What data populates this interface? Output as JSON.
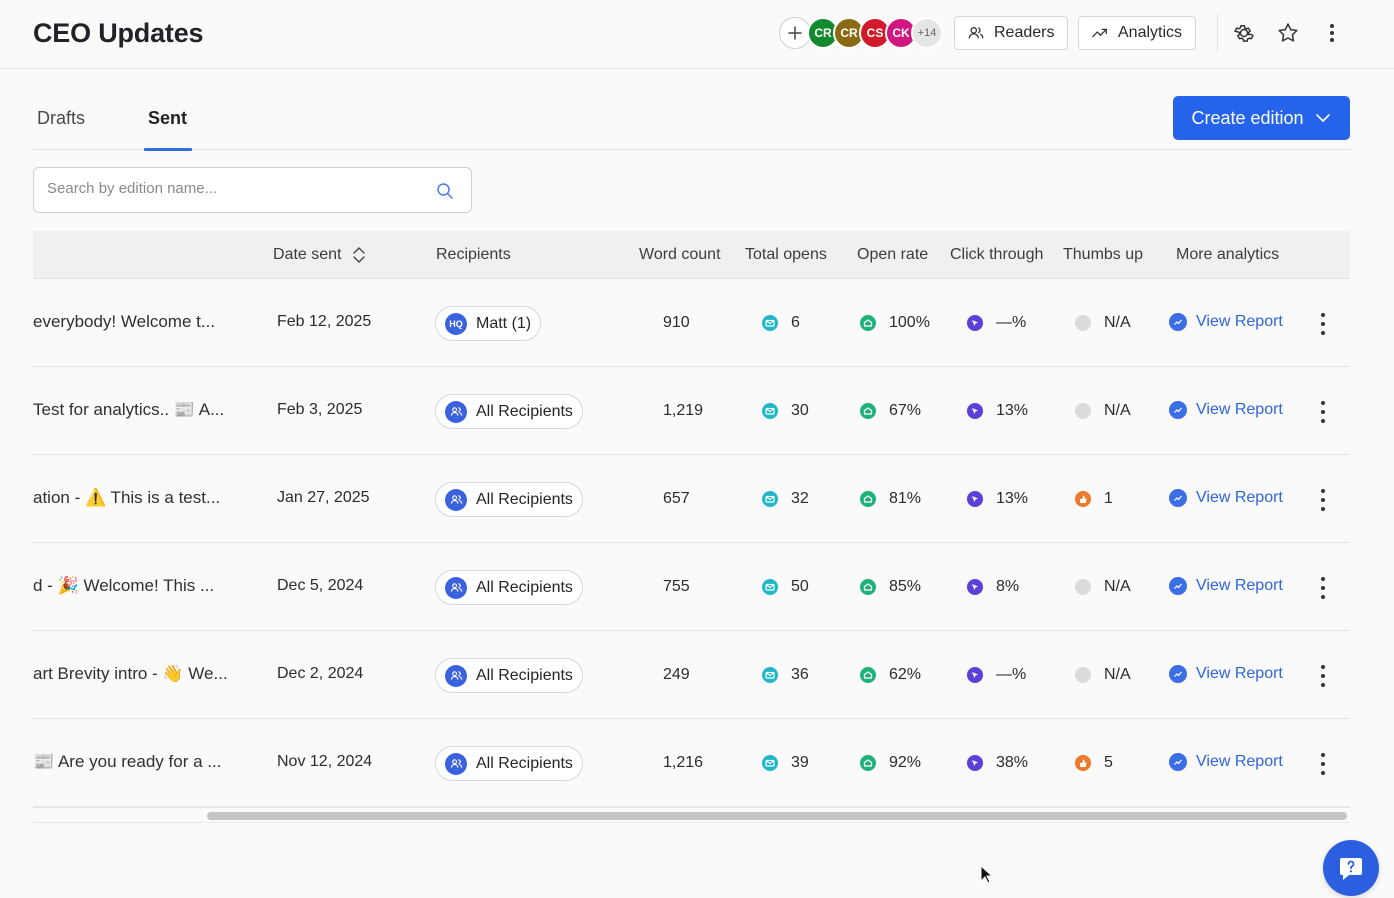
{
  "header": {
    "title": "CEO Updates",
    "avatars": [
      {
        "initials": "CR",
        "color": "#138a2e"
      },
      {
        "initials": "CR",
        "color": "#8a6a12"
      },
      {
        "initials": "CS",
        "color": "#d11a2a"
      },
      {
        "initials": "CK",
        "color": "#d1177f"
      }
    ],
    "avatar_more": "+14",
    "readers_label": "Readers",
    "analytics_label": "Analytics"
  },
  "tabs": [
    {
      "label": "Drafts",
      "active": false
    },
    {
      "label": "Sent",
      "active": true
    }
  ],
  "create_button": "Create edition",
  "search": {
    "placeholder": "Search by edition name...",
    "value": ""
  },
  "table": {
    "columns": [
      "Date sent",
      "Recipients",
      "Word count",
      "Total opens",
      "Open rate",
      "Click through",
      "Thumbs up",
      "More analytics"
    ],
    "rows": [
      {
        "name": "everybody! Welcome t...",
        "date": "Feb 12, 2025",
        "recipients": "Matt (1)",
        "recipients_icon": "hq-icon",
        "word_count": "910",
        "total_opens": "6",
        "open_rate": "100%",
        "click_through": "—%",
        "thumbs_up": "N/A",
        "thumbs_icon": "gray",
        "report": "View Report"
      },
      {
        "name": "Test for analytics.. 📰 A...",
        "date": "Feb 3, 2025",
        "recipients": "All Recipients",
        "recipients_icon": "users-icon",
        "word_count": "1,219",
        "total_opens": "30",
        "open_rate": "67%",
        "click_through": "13%",
        "thumbs_up": "N/A",
        "thumbs_icon": "gray",
        "report": "View Report"
      },
      {
        "name": "ation - ⚠️ This is a test...",
        "date": "Jan 27, 2025",
        "recipients": "All Recipients",
        "recipients_icon": "users-icon",
        "word_count": "657",
        "total_opens": "32",
        "open_rate": "81%",
        "click_through": "13%",
        "thumbs_up": "1",
        "thumbs_icon": "orange",
        "report": "View Report"
      },
      {
        "name": "d - 🎉 Welcome! This ...",
        "date": "Dec 5, 2024",
        "recipients": "All Recipients",
        "recipients_icon": "users-icon",
        "word_count": "755",
        "total_opens": "50",
        "open_rate": "85%",
        "click_through": "8%",
        "thumbs_up": "N/A",
        "thumbs_icon": "gray",
        "report": "View Report"
      },
      {
        "name": "art Brevity intro - 👋 We...",
        "date": "Dec 2, 2024",
        "recipients": "All Recipients",
        "recipients_icon": "users-icon",
        "word_count": "249",
        "total_opens": "36",
        "open_rate": "62%",
        "click_through": "—%",
        "thumbs_up": "N/A",
        "thumbs_icon": "gray",
        "report": "View Report"
      },
      {
        "name": "📰 Are you ready for a ...",
        "date": "Nov 12, 2024",
        "recipients": "All Recipients",
        "recipients_icon": "users-icon",
        "word_count": "1,216",
        "total_opens": "39",
        "open_rate": "92%",
        "click_through": "38%",
        "thumbs_up": "5",
        "thumbs_icon": "orange",
        "report": "View Report"
      }
    ]
  },
  "colors": {
    "accent": "#2563eb",
    "link": "#2f64e0"
  }
}
